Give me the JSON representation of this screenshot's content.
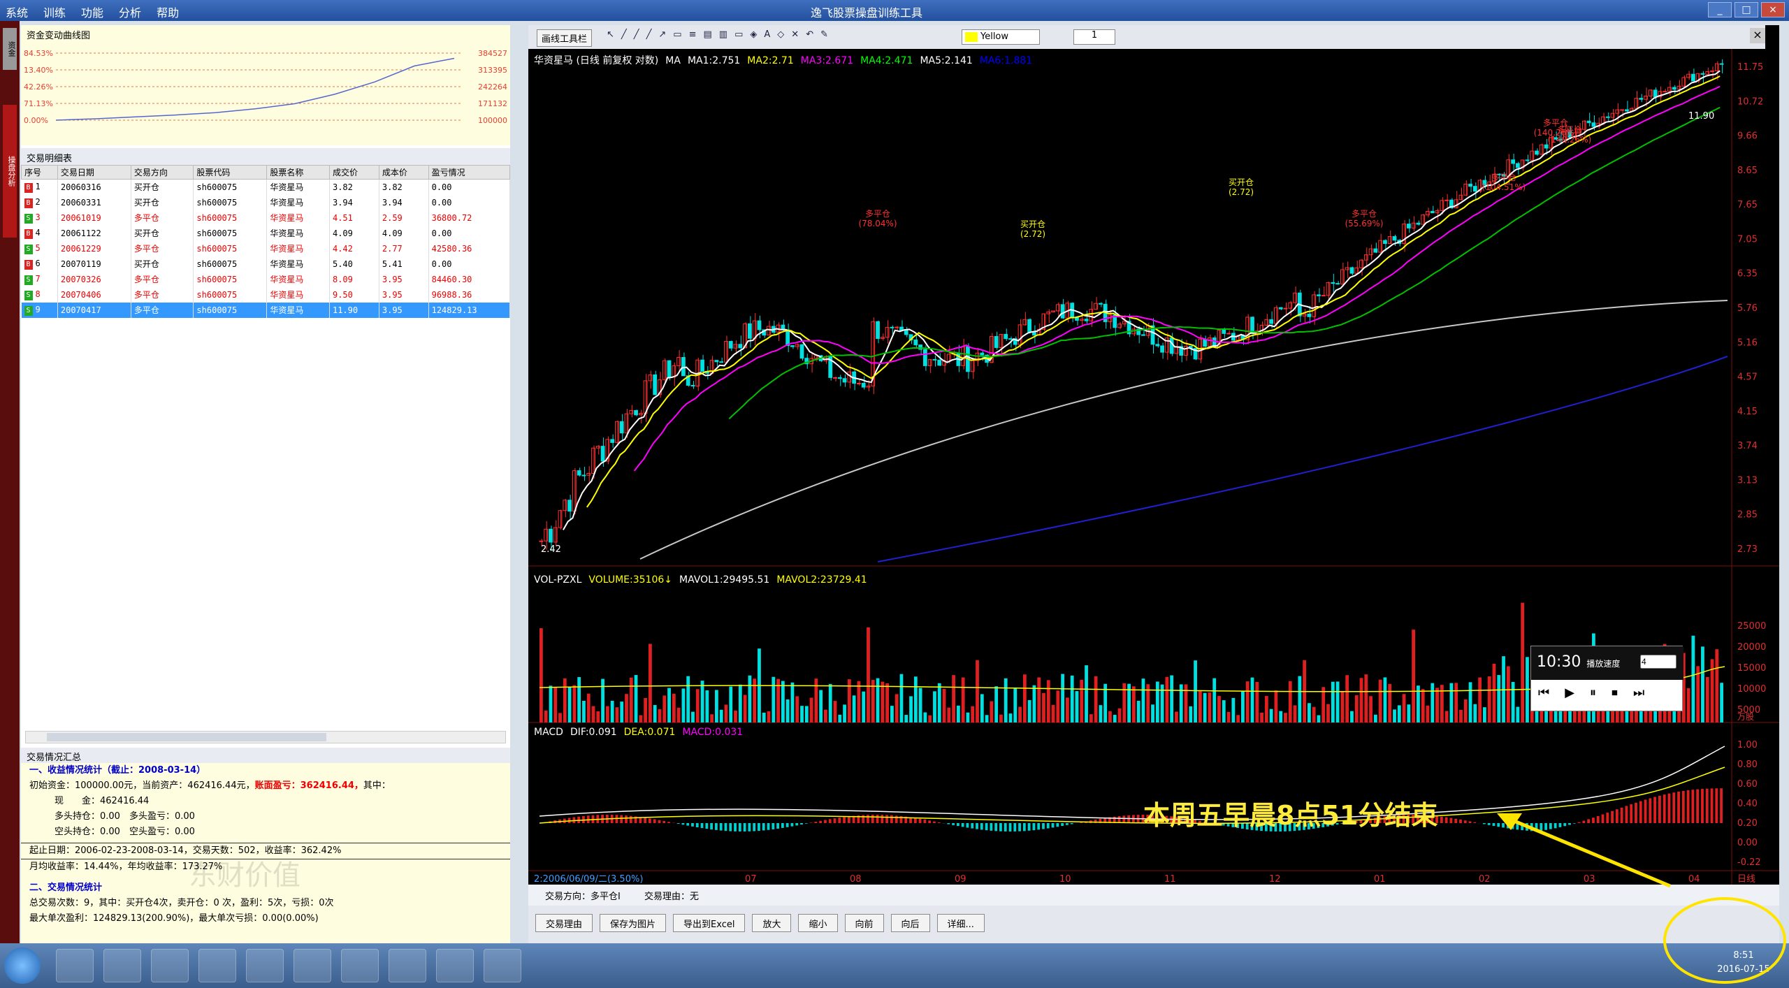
{
  "window": {
    "menu": [
      "系统",
      "训练",
      "功能",
      "分析",
      "帮助"
    ],
    "title": "逸飞股票操盘训练工具",
    "controls": [
      "_",
      "□",
      "×"
    ]
  },
  "left_tabs": [
    "资金",
    "操盘分析"
  ],
  "equity": {
    "title": "资金变动曲线图",
    "left_labels": [
      "84.53%",
      "13.40%",
      "42.26%",
      "71.13%",
      "0.00%"
    ],
    "right_labels": [
      "384527",
      "313395",
      "242264",
      "171132",
      "100000"
    ],
    "values": [
      100000,
      106000,
      114000,
      122000,
      132000,
      148000,
      170000,
      210000,
      262000,
      330000,
      362416
    ]
  },
  "trades": {
    "title": "交易明细表",
    "columns": [
      "序号",
      "交易日期",
      "交易方向",
      "股票代码",
      "股票名称",
      "成交价",
      "成本价",
      "盈亏情况"
    ],
    "rows": [
      {
        "flag": "B",
        "no": "1",
        "date": "20060316",
        "dir": "买开仓",
        "code": "sh600075",
        "name": "华资星马",
        "price": "3.82",
        "cost": "3.82",
        "pnl": "0.00",
        "red": false,
        "sel": false
      },
      {
        "flag": "B",
        "no": "2",
        "date": "20060331",
        "dir": "买开仓",
        "code": "sh600075",
        "name": "华资星马",
        "price": "3.94",
        "cost": "3.94",
        "pnl": "0.00",
        "red": false,
        "sel": false
      },
      {
        "flag": "S",
        "no": "3",
        "date": "20061019",
        "dir": "多平仓",
        "code": "sh600075",
        "name": "华资星马",
        "price": "4.51",
        "cost": "2.59",
        "pnl": "36800.72",
        "red": true,
        "sel": false
      },
      {
        "flag": "B",
        "no": "4",
        "date": "20061122",
        "dir": "买开仓",
        "code": "sh600075",
        "name": "华资星马",
        "price": "4.09",
        "cost": "4.09",
        "pnl": "0.00",
        "red": false,
        "sel": false
      },
      {
        "flag": "S",
        "no": "5",
        "date": "20061229",
        "dir": "多平仓",
        "code": "sh600075",
        "name": "华资星马",
        "price": "4.42",
        "cost": "2.77",
        "pnl": "42580.36",
        "red": true,
        "sel": false
      },
      {
        "flag": "B",
        "no": "6",
        "date": "20070119",
        "dir": "买开仓",
        "code": "sh600075",
        "name": "华资星马",
        "price": "5.40",
        "cost": "5.41",
        "pnl": "0.00",
        "red": false,
        "sel": false
      },
      {
        "flag": "S",
        "no": "7",
        "date": "20070326",
        "dir": "多平仓",
        "code": "sh600075",
        "name": "华资星马",
        "price": "8.09",
        "cost": "3.95",
        "pnl": "84460.30",
        "red": true,
        "sel": false
      },
      {
        "flag": "S",
        "no": "8",
        "date": "20070406",
        "dir": "多平仓",
        "code": "sh600075",
        "name": "华资星马",
        "price": "9.50",
        "cost": "3.95",
        "pnl": "96988.36",
        "red": true,
        "sel": false
      },
      {
        "flag": "S",
        "no": "9",
        "date": "20070417",
        "dir": "多平仓",
        "code": "sh600075",
        "name": "华资星马",
        "price": "11.90",
        "cost": "3.95",
        "pnl": "124829.13",
        "red": true,
        "sel": true
      }
    ]
  },
  "summary": {
    "title": "交易情况汇总",
    "s1": "一、收益情况统计（截止：2008-03-14）",
    "l1a": "初始资金：100000.00元，当前资产：462416.44元，",
    "l1b": "账面盈亏：362416.44，",
    "l1c": "其中：",
    "l2": "现　　金：462416.44",
    "l3": "多头持仓：0.00　多头盈亏：0.00",
    "l4": "空头持仓：0.00　空头盈亏：0.00",
    "l5": "起止日期：2006-02-23-2008-03-14，交易天数：502，收益率：362.42%",
    "l6": "月均收益率：14.44%，年均收益率：173.27%",
    "s2": "二、交易情况统计",
    "l7": "总交易次数：9，其中：买开仓4次，卖开仓：0 次，盈利：5次，亏损：0次",
    "l8": "最大单次盈利：124829.13(200.90%)，最大单次亏损：0.00(0.00%)",
    "watermark": "东财价值"
  },
  "toolbar": {
    "draw": "画线工具栏",
    "color": "Yellow",
    "num": "1",
    "tools": [
      "↖",
      "╱",
      "╱",
      "╱",
      "↗",
      "▭",
      "≡",
      "▤",
      "▥",
      "▭",
      "◈",
      "A",
      "◇",
      "✕",
      "↶",
      "✎"
    ]
  },
  "kline": {
    "legend": [
      {
        "t": "华资星马 (日线 前复权 对数)",
        "c": "#ffffff"
      },
      {
        "t": "MA",
        "c": "#ffffff"
      },
      {
        "t": "MA1:2.751",
        "c": "#ffffff"
      },
      {
        "t": "MA2:2.71",
        "c": "#ffff00"
      },
      {
        "t": "MA3:2.671",
        "c": "#ff00ff"
      },
      {
        "t": "MA4:2.471",
        "c": "#00ff00"
      },
      {
        "t": "MA5:2.141",
        "c": "#ffffff"
      },
      {
        "t": "MA6:1.881",
        "c": "#0000ff"
      }
    ],
    "price_axis": [
      "11.75",
      "10.72",
      "9.66",
      "8.65",
      "7.65",
      "7.05",
      "6.35",
      "5.76",
      "5.16",
      "4.57",
      "4.15",
      "3.74",
      "3.13",
      "2.85",
      "2.73"
    ],
    "annotations": [
      {
        "t": "多平仓",
        "s": "(78.04%)"
      },
      {
        "t": "买开仓",
        "s": "(2.72)"
      },
      {
        "t": "多平仓",
        "s": "(55.69%)"
      },
      {
        "t": "买开仓",
        "s": "(2.72)"
      },
      {
        "t": "多平仓",
        "s": "(104.51%)"
      },
      {
        "t": "多平仓",
        "s": "(140.26%)"
      },
      {
        "t": "多平仓",
        "s": "(140.26%)"
      }
    ],
    "high_label": "11.90",
    "low_label": "2.42"
  },
  "volume": {
    "legend": [
      {
        "t": "VOL-PZXL",
        "c": "#ffffff"
      },
      {
        "t": "VOLUME:35106↓",
        "c": "#ffff00"
      },
      {
        "t": "MAVOL1:29495.51",
        "c": "#ffffff"
      },
      {
        "t": "MAVOL2:23729.41",
        "c": "#ffff00"
      }
    ],
    "axis": [
      "25000",
      "20000",
      "15000",
      "10000",
      "5000"
    ],
    "unit": "万股"
  },
  "macd": {
    "legend": [
      {
        "t": "MACD",
        "c": "#ffffff"
      },
      {
        "t": "DIF:0.091",
        "c": "#ffffff"
      },
      {
        "t": "DEA:0.071",
        "c": "#ffff00"
      },
      {
        "t": "MACD:0.031",
        "c": "#ff00ff"
      }
    ],
    "axis": [
      "1.00",
      "0.80",
      "0.60",
      "0.40",
      "0.20",
      "0.00",
      "-0.22"
    ]
  },
  "dates": {
    "first": "2:2006/06/09/二(3.50%)",
    "months": [
      "07",
      "08",
      "09",
      "10",
      "11",
      "12",
      "01",
      "02",
      "03",
      "04"
    ],
    "right": "日线"
  },
  "info_bar": {
    "dir": "交易方向：多平仓Ⅰ",
    "reason": "交易理由：无"
  },
  "buttons": [
    "交易理由",
    "保存为图片",
    "导出到Excel",
    "放大",
    "缩小",
    "向前",
    "向后",
    "详细..."
  ],
  "replay": {
    "time": "10:30",
    "label": "播放速度",
    "speed": "4",
    "ctrls": [
      "⏮",
      "▶",
      "⏸",
      "⏹",
      "⏭"
    ]
  },
  "annotation": {
    "text": "本周五早晨8点51分结束"
  },
  "clock": {
    "time": "8:51",
    "date": "2016-07-15"
  }
}
